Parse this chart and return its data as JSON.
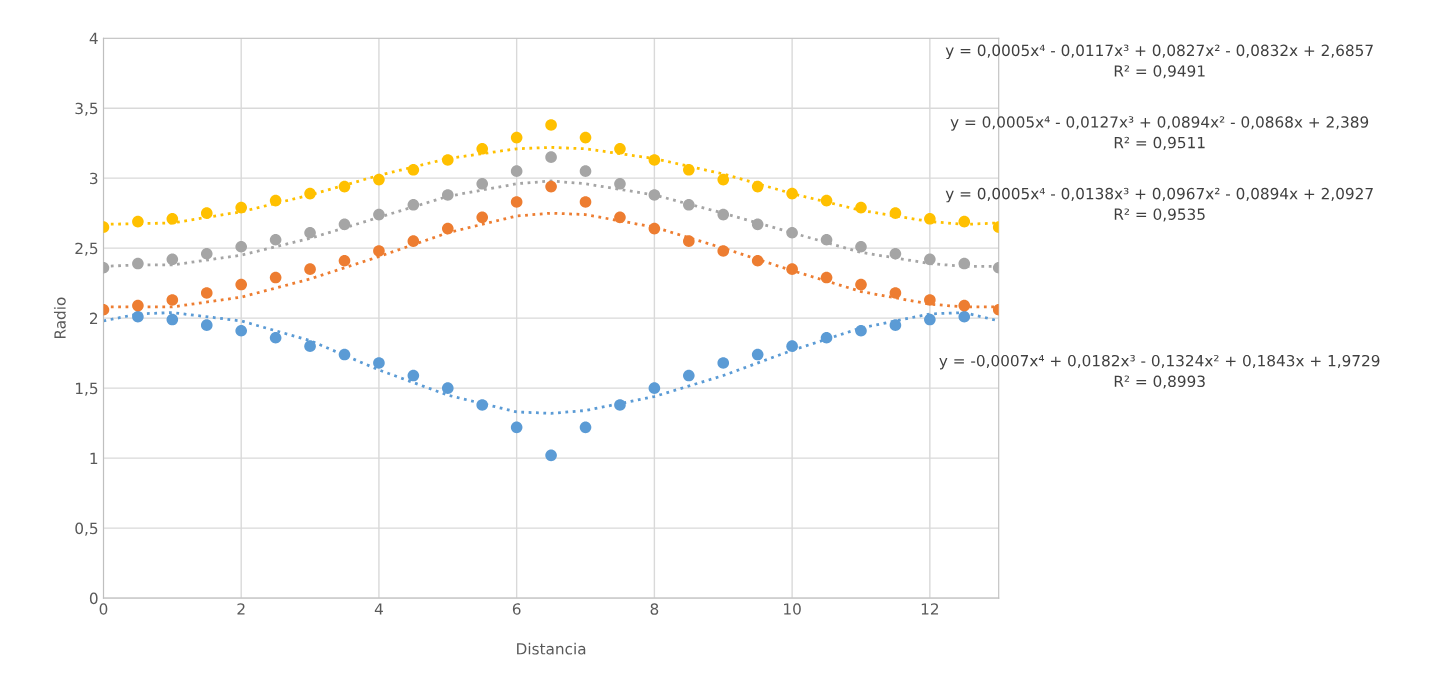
{
  "chart_data": {
    "type": "scatter",
    "xlabel": "Distancia",
    "ylabel": "Radio",
    "xlim": [
      0,
      13
    ],
    "ylim": [
      0,
      4
    ],
    "xticks": [
      0,
      2,
      4,
      6,
      8,
      10,
      12
    ],
    "yticks": [
      0,
      {
        "value": 0.5,
        "label": "0,5"
      },
      1,
      {
        "value": 1.5,
        "label": "1,5"
      },
      2,
      {
        "value": 2.5,
        "label": "2,5"
      },
      3,
      {
        "value": 3.5,
        "label": "3,5"
      },
      4
    ],
    "grid": true,
    "marker": "circle",
    "x": [
      0,
      0.5,
      1,
      1.5,
      2,
      2.5,
      3,
      3.5,
      4,
      4.5,
      5,
      5.5,
      6,
      6.5,
      7,
      7.5,
      8,
      8.5,
      9,
      9.5,
      10,
      10.5,
      11,
      11.5,
      12,
      12.5,
      13
    ],
    "series": [
      {
        "color": "#5b9bd5",
        "values": [
          null,
          2.01,
          1.99,
          1.95,
          1.91,
          1.86,
          1.8,
          1.74,
          1.68,
          1.59,
          1.5,
          1.38,
          1.22,
          1.02,
          1.22,
          1.38,
          1.5,
          1.59,
          1.68,
          1.74,
          1.8,
          1.86,
          1.91,
          1.95,
          1.99,
          2.01,
          null
        ]
      },
      {
        "color": "#ed7d31",
        "values": [
          2.06,
          2.09,
          2.13,
          2.18,
          2.24,
          2.29,
          2.35,
          2.41,
          2.48,
          2.55,
          2.64,
          2.72,
          2.83,
          2.94,
          2.83,
          2.72,
          2.64,
          2.55,
          2.48,
          2.41,
          2.35,
          2.29,
          2.24,
          2.18,
          2.13,
          2.09,
          2.06
        ]
      },
      {
        "color": "#a5a5a5",
        "values": [
          2.36,
          2.39,
          2.42,
          2.46,
          2.51,
          2.56,
          2.61,
          2.67,
          2.74,
          2.81,
          2.88,
          2.96,
          3.05,
          3.15,
          3.05,
          2.96,
          2.88,
          2.81,
          2.74,
          2.67,
          2.61,
          2.56,
          2.51,
          2.46,
          2.42,
          2.39,
          2.36
        ]
      },
      {
        "color": "#ffc000",
        "values": [
          2.65,
          2.69,
          2.71,
          2.75,
          2.79,
          2.84,
          2.89,
          2.94,
          2.99,
          3.06,
          3.13,
          3.21,
          3.29,
          3.38,
          3.29,
          3.21,
          3.13,
          3.06,
          2.99,
          2.94,
          2.89,
          2.84,
          2.79,
          2.75,
          2.71,
          2.69,
          2.65
        ]
      },
      {
        "type": "line",
        "marker": "none",
        "line_style": "dotted",
        "color": "#5b9bd5",
        "x": [
          0,
          0.5,
          1,
          2,
          3,
          4,
          5,
          6,
          6.5,
          7,
          8,
          9,
          10,
          11,
          12,
          12.5,
          13
        ],
        "values": [
          1.98,
          2.03,
          2.04,
          1.98,
          1.84,
          1.63,
          1.45,
          1.33,
          1.32,
          1.34,
          1.44,
          1.59,
          1.77,
          1.93,
          2.03,
          2.04,
          1.98
        ]
      },
      {
        "type": "line",
        "marker": "none",
        "line_style": "dotted",
        "color": "#ed7d31",
        "x": [
          0,
          1,
          2,
          3,
          4,
          5,
          6,
          6.5,
          7,
          8,
          9,
          10,
          11,
          12,
          12.5,
          13
        ],
        "values": [
          2.08,
          2.08,
          2.15,
          2.28,
          2.44,
          2.61,
          2.73,
          2.75,
          2.74,
          2.65,
          2.5,
          2.34,
          2.19,
          2.1,
          2.08,
          2.08
        ]
      },
      {
        "type": "line",
        "marker": "none",
        "line_style": "dotted",
        "color": "#a5a5a5",
        "x": [
          0,
          0.5,
          1,
          2,
          3,
          4,
          5,
          6,
          6.5,
          7,
          8,
          9,
          10,
          11,
          12,
          12.5,
          13
        ],
        "values": [
          2.37,
          2.38,
          2.38,
          2.45,
          2.57,
          2.72,
          2.87,
          2.96,
          2.98,
          2.96,
          2.88,
          2.75,
          2.61,
          2.47,
          2.39,
          2.37,
          2.37
        ]
      },
      {
        "type": "line",
        "marker": "none",
        "line_style": "dotted",
        "color": "#ffc000",
        "x": [
          0,
          1,
          2,
          3,
          4,
          5,
          6,
          6.5,
          7,
          8,
          9,
          10,
          11,
          12,
          12.5,
          13
        ],
        "values": [
          2.67,
          2.68,
          2.76,
          2.88,
          3.02,
          3.14,
          3.21,
          3.22,
          3.21,
          3.14,
          3.03,
          2.89,
          2.77,
          2.69,
          2.67,
          2.68
        ]
      }
    ],
    "annotations": [
      "y = 0,0005x⁴ - 0,0117x³ + 0,0827x² - 0,0832x + 2,6857\nR² = 0,9491",
      "y = 0,0005x⁴ - 0,0127x³ + 0,0894x² - 0,0868x + 2,389\nR² = 0,9511",
      "y = 0,0005x⁴ - 0,0138x³ + 0,0967x² - 0,0894x + 2,0927\nR² = 0,9535",
      "y = -0,0007x⁴ + 0,0182x³ - 0,1324x² + 0,1843x + 1,9729\nR² = 0,8993"
    ]
  }
}
